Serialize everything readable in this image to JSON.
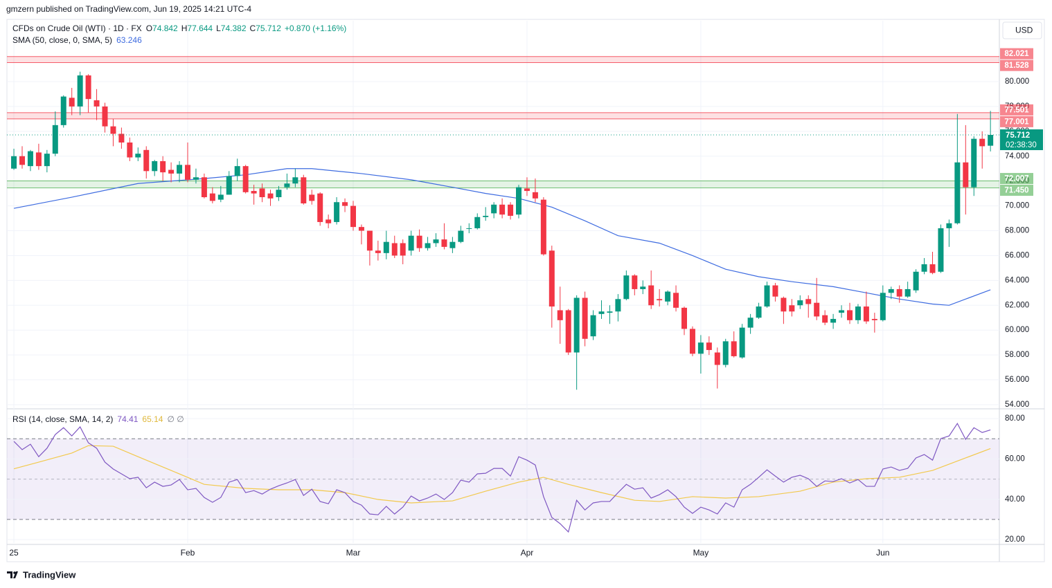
{
  "header": {
    "text": "gmzern published on TradingView.com, Jun 19, 2025 14:21 UTC-4"
  },
  "chart_data": {
    "type": "candlestick",
    "title": "CFDs on Crude Oil (WTI) · 1D · FX",
    "ohlc_labels": [
      "O",
      "H",
      "L",
      "C"
    ],
    "change": "+0.870 (+1.16%)",
    "currency": "USD",
    "countdown": "02:38:30",
    "up_color": "#089981",
    "down_color": "#f23645",
    "categories": [
      "25",
      null,
      null,
      null,
      null,
      null,
      null,
      null,
      null,
      null,
      null,
      null,
      null,
      null,
      null,
      null,
      null,
      null,
      null,
      null,
      null,
      "Feb",
      null,
      null,
      null,
      null,
      null,
      null,
      null,
      null,
      null,
      null,
      null,
      null,
      null,
      null,
      null,
      null,
      null,
      null,
      null,
      "Mar",
      null,
      null,
      null,
      null,
      null,
      null,
      null,
      null,
      null,
      null,
      null,
      null,
      null,
      null,
      null,
      null,
      null,
      null,
      null,
      null,
      "Apr",
      null,
      null,
      null,
      null,
      null,
      null,
      null,
      null,
      null,
      null,
      null,
      null,
      null,
      null,
      null,
      null,
      null,
      null,
      null,
      null,
      "May",
      null,
      null,
      null,
      null,
      null,
      null,
      null,
      null,
      null,
      null,
      null,
      null,
      null,
      null,
      null,
      null,
      null,
      null,
      null,
      null,
      null,
      "Jun",
      null,
      null,
      null,
      null,
      null,
      null,
      null,
      null,
      null,
      null,
      null,
      null,
      null
    ],
    "open": [
      73.0,
      74.0,
      73.2,
      74.3,
      73.2,
      74.2,
      76.5,
      78.7,
      78.0,
      80.5,
      78.5,
      78.0,
      76.4,
      75.8,
      75.1,
      73.9,
      74.5,
      72.8,
      73.6,
      72.9,
      72.6,
      73.3,
      72.1,
      72.3,
      71.0,
      70.5,
      70.9,
      72.4,
      73.2,
      71.2,
      71.4,
      71.0,
      70.7,
      71.5,
      71.8,
      72.3,
      70.9,
      71.0,
      68.9,
      68.7,
      70.3,
      70.0,
      68.3,
      68.0,
      66.4,
      66.2,
      67.0,
      67.0,
      66.4,
      67.6,
      66.6,
      67.0,
      67.3,
      66.6,
      67.1,
      68.2,
      68.2,
      69.1,
      69.4,
      70.1,
      70.1,
      69.3,
      71.4,
      71.1,
      70.5,
      66.4,
      61.6,
      61.6,
      58.2,
      62.6,
      59.5,
      61.3,
      61.4,
      61.5,
      62.5,
      64.4,
      63.3,
      63.6,
      62.5,
      62.3,
      63.0,
      61.8,
      60.1,
      58.1,
      59.0,
      58.2,
      57.2,
      59.1,
      57.8,
      60.2,
      61.0,
      61.9,
      63.6,
      62.6,
      62.0,
      62.0,
      62.5,
      62.2,
      61.2,
      60.6,
      61.4,
      61.6,
      60.8,
      61.9,
      60.9,
      60.8,
      63.0,
      63.3,
      62.7,
      63.2,
      64.7,
      65.3,
      64.7,
      68.2,
      68.6,
      73.5,
      71.5,
      75.4,
      74.842
    ],
    "high": [
      74.6,
      74.8,
      74.5,
      75.0,
      74.5,
      77.6,
      78.9,
      79.5,
      80.8,
      80.6,
      79.4,
      78.3,
      77.0,
      76.3,
      75.5,
      74.7,
      74.8,
      73.7,
      74.0,
      73.5,
      73.6,
      75.1,
      73.0,
      72.6,
      71.5,
      71.6,
      72.8,
      73.8,
      73.3,
      71.7,
      71.8,
      71.3,
      71.6,
      72.6,
      73.0,
      72.5,
      71.3,
      71.1,
      69.3,
      70.7,
      70.6,
      70.4,
      68.5,
      68.0,
      67.2,
      68.0,
      67.6,
      67.3,
      68.0,
      68.1,
      67.5,
      67.8,
      68.6,
      67.5,
      68.4,
      68.6,
      69.4,
      69.9,
      70.3,
      70.6,
      70.3,
      71.7,
      72.3,
      72.2,
      70.7,
      66.8,
      63.5,
      61.7,
      62.8,
      63.1,
      61.6,
      62.4,
      62.0,
      62.9,
      64.8,
      64.5,
      64.0,
      64.8,
      63.3,
      63.2,
      63.6,
      61.9,
      60.3,
      59.6,
      59.5,
      58.6,
      59.3,
      59.9,
      60.5,
      61.3,
      62.2,
      63.9,
      63.8,
      62.7,
      62.5,
      62.8,
      62.8,
      64.2,
      61.6,
      61.3,
      62.0,
      62.2,
      62.1,
      63.1,
      61.4,
      63.6,
      63.5,
      63.6,
      63.9,
      64.9,
      65.8,
      66.3,
      68.5,
      68.9,
      77.4,
      76.5,
      75.6,
      76.0,
      77.644
    ],
    "low": [
      72.9,
      73.0,
      72.8,
      72.9,
      72.7,
      74.0,
      76.3,
      77.3,
      77.3,
      77.5,
      76.9,
      75.9,
      74.8,
      74.6,
      73.6,
      73.6,
      72.2,
      72.4,
      72.0,
      71.9,
      71.9,
      71.9,
      71.8,
      70.6,
      70.2,
      70.3,
      70.9,
      72.0,
      71.0,
      70.1,
      70.3,
      70.0,
      70.4,
      71.3,
      71.5,
      70.1,
      70.1,
      68.4,
      68.2,
      68.5,
      69.5,
      68.0,
      66.9,
      65.2,
      65.6,
      65.7,
      65.8,
      65.3,
      66.0,
      66.3,
      66.4,
      66.7,
      66.5,
      66.2,
      67.0,
      67.8,
      68.1,
      68.8,
      69.0,
      69.0,
      68.9,
      69.0,
      70.8,
      70.3,
      66.0,
      60.2,
      58.9,
      58.0,
      55.2,
      58.7,
      59.2,
      60.9,
      60.5,
      60.7,
      62.4,
      62.8,
      62.9,
      61.7,
      61.9,
      62.0,
      61.5,
      59.6,
      57.9,
      56.5,
      58.0,
      55.3,
      57.0,
      57.8,
      57.7,
      59.7,
      60.9,
      61.8,
      62.3,
      60.5,
      61.1,
      61.7,
      61.0,
      60.8,
      60.4,
      60.1,
      61.0,
      60.5,
      60.5,
      60.5,
      59.8,
      60.7,
      62.5,
      62.2,
      62.6,
      63.0,
      64.5,
      64.5,
      64.6,
      66.7,
      68.5,
      69.3,
      70.8,
      73.0,
      74.382
    ],
    "close": [
      74.0,
      73.3,
      74.4,
      73.2,
      74.2,
      76.5,
      78.8,
      78.0,
      80.5,
      78.6,
      78.0,
      76.4,
      75.8,
      75.1,
      73.9,
      74.2,
      72.8,
      73.6,
      72.7,
      72.6,
      73.3,
      72.1,
      72.3,
      70.7,
      70.4,
      70.9,
      72.4,
      73.2,
      71.1,
      71.0,
      70.7,
      70.6,
      71.3,
      71.8,
      72.3,
      70.2,
      70.4,
      68.7,
      68.6,
      70.3,
      70.0,
      68.3,
      68.0,
      66.4,
      66.2,
      67.1,
      66.0,
      66.0,
      67.6,
      66.6,
      67.0,
      67.3,
      66.7,
      67.1,
      68.0,
      68.2,
      69.1,
      69.2,
      70.1,
      69.3,
      69.2,
      71.5,
      71.2,
      70.6,
      66.1,
      61.9,
      60.8,
      58.2,
      62.6,
      59.3,
      61.2,
      61.5,
      61.5,
      62.5,
      64.4,
      63.3,
      63.5,
      62.0,
      62.4,
      63.1,
      61.8,
      60.1,
      58.1,
      59.0,
      58.4,
      57.2,
      59.1,
      57.9,
      60.2,
      61.0,
      61.9,
      63.6,
      62.7,
      61.5,
      61.5,
      62.4,
      62.1,
      61.1,
      60.6,
      60.9,
      61.6,
      60.8,
      61.9,
      60.7,
      60.8,
      63.0,
      63.3,
      62.7,
      63.3,
      64.7,
      65.3,
      64.6,
      68.2,
      68.6,
      73.5,
      71.5,
      75.4,
      74.8,
      75.712
    ],
    "ylim": [
      53.72,
      84.9
    ],
    "yticks": [
      {
        "value": 54,
        "label": "54.000"
      },
      {
        "value": 56,
        "label": "56.000"
      },
      {
        "value": 58,
        "label": "58.000"
      },
      {
        "value": 60,
        "label": "60.000"
      },
      {
        "value": 62,
        "label": "62.000"
      },
      {
        "value": 64,
        "label": "64.000"
      },
      {
        "value": 66,
        "label": "66.000"
      },
      {
        "value": 68,
        "label": "68.000"
      },
      {
        "value": 70,
        "label": "70.000"
      },
      {
        "value": 72,
        "label": "72.000"
      },
      {
        "value": 74,
        "label": "74.000"
      },
      {
        "value": 76,
        "label": "76.000"
      },
      {
        "value": 78,
        "label": "78.000"
      },
      {
        "value": 80,
        "label": "80.000"
      }
    ],
    "grid": true,
    "zones": [
      {
        "top": 82.021,
        "bottom": 81.528,
        "color": "#f23645"
      },
      {
        "top": 77.501,
        "bottom": 77.001,
        "color": "#f23645"
      },
      {
        "top": 72.007,
        "bottom": {
          "value": 71.45,
          "label": "71.450"
        },
        "color": "#4caf50"
      }
    ],
    "sma": {
      "name": "SMA (50, close, 0, SMA, 5)",
      "color": "#3d6be0",
      "x": [
        0,
        7,
        15,
        23,
        28,
        33,
        36,
        42,
        48,
        53,
        57,
        61,
        65,
        69,
        73,
        78,
        82,
        86,
        90,
        94,
        99,
        103,
        107,
        111,
        113,
        115,
        118
      ],
      "values": [
        69.8,
        70.7,
        71.8,
        72.2,
        72.5,
        73.0,
        73.0,
        72.6,
        72.1,
        71.5,
        71.0,
        70.6,
        69.9,
        68.8,
        67.6,
        67.0,
        66.0,
        64.9,
        64.3,
        63.9,
        63.5,
        63.0,
        62.5,
        62.1,
        62.0,
        62.5,
        63.246
      ]
    },
    "rsi": {
      "name": "RSI (14, close, SMA, 14, 2)",
      "color": "#7e57c2",
      "extra": "∅ ∅",
      "ylim": [
        18.3,
        84.5
      ],
      "yticks": [
        {
          "value": 20,
          "label": "20.00"
        },
        {
          "value": 40,
          "label": "40.00"
        },
        {
          "value": 60,
          "label": "60.00"
        },
        {
          "value": 80,
          "label": "80.00"
        }
      ],
      "bands": [
        30,
        70
      ],
      "middle": 50,
      "values": [
        68.7,
        64.6,
        67.3,
        61.1,
        65.3,
        72.1,
        75.5,
        71.4,
        75.9,
        68.0,
        65.3,
        58.4,
        55.0,
        52.6,
        50.2,
        50.9,
        45.7,
        48.5,
        46.4,
        47.1,
        49.8,
        44.7,
        45.4,
        40.9,
        38.5,
        40.9,
        48.5,
        49.8,
        43.3,
        44.3,
        42.6,
        45.0,
        46.7,
        48.1,
        49.8,
        41.9,
        45.0,
        38.9,
        37.8,
        44.7,
        43.3,
        38.9,
        37.1,
        32.7,
        32.3,
        36.5,
        32.7,
        36.1,
        41.6,
        39.2,
        40.6,
        42.6,
        39.9,
        43.3,
        49.5,
        48.5,
        52.6,
        52.9,
        55.3,
        55.3,
        51.5,
        61.1,
        59.4,
        57.0,
        41.3,
        31.0,
        27.9,
        23.8,
        39.5,
        34.7,
        38.2,
        38.9,
        38.9,
        43.3,
        47.4,
        45.0,
        45.7,
        40.6,
        42.3,
        44.7,
        41.3,
        36.1,
        33.0,
        36.1,
        34.7,
        32.7,
        38.2,
        36.1,
        44.7,
        47.4,
        50.9,
        54.6,
        51.5,
        48.5,
        50.9,
        51.9,
        50.2,
        46.4,
        49.1,
        48.8,
        50.2,
        48.1,
        49.8,
        46.4,
        46.4,
        55.0,
        56.0,
        54.3,
        55.3,
        60.5,
        62.2,
        59.4,
        70.1,
        71.4,
        77.6,
        69.7,
        75.5,
        73.1,
        74.41
      ],
      "sma": {
        "color": "#f2c94c",
        "x": [
          0,
          3,
          7,
          9,
          12,
          15,
          19,
          23,
          28,
          32,
          36,
          40,
          44,
          48,
          53,
          57,
          61,
          64,
          67,
          71,
          75,
          78,
          82,
          86,
          90,
          95,
          99,
          103,
          107,
          111,
          115,
          118
        ],
        "values": [
          55.1,
          58.4,
          62.9,
          66.6,
          66.3,
          61.1,
          54.3,
          47.4,
          45.4,
          44.7,
          44.7,
          43.3,
          39.9,
          38.2,
          39.2,
          44.0,
          48.5,
          50.9,
          47.4,
          43.3,
          39.5,
          38.9,
          41.3,
          40.6,
          41.3,
          44.0,
          48.5,
          50.2,
          50.9,
          54.3,
          60.5,
          65.14
        ]
      }
    }
  },
  "footer": {
    "brand": "TradingView"
  }
}
